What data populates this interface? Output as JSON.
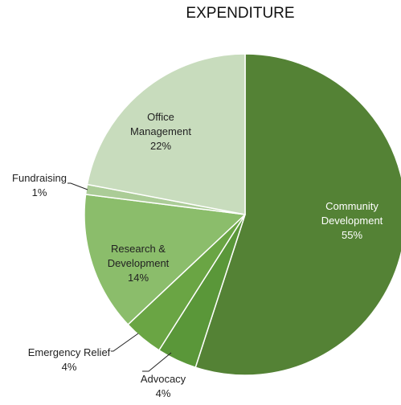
{
  "chart_data": {
    "type": "pie",
    "title": "EXPENDITURE",
    "slices": [
      {
        "label_lines": [
          "Community",
          "Development",
          "55%"
        ],
        "value": 55,
        "color": "#548235"
      },
      {
        "label_lines": [
          "Advocacy",
          "4%"
        ],
        "value": 4,
        "color": "#5a9739"
      },
      {
        "label_lines": [
          "Emergency Relief",
          "4%"
        ],
        "value": 4,
        "color": "#6aa544"
      },
      {
        "label_lines": [
          "Research &",
          "Development",
          "14%"
        ],
        "value": 14,
        "color": "#8bbd6b"
      },
      {
        "label_lines": [
          "Fundraising",
          "1%"
        ],
        "value": 1,
        "color": "#abcc97"
      },
      {
        "label_lines": [
          "Office",
          "Management",
          "22%"
        ],
        "value": 22,
        "color": "#c8dcbd"
      }
    ]
  }
}
